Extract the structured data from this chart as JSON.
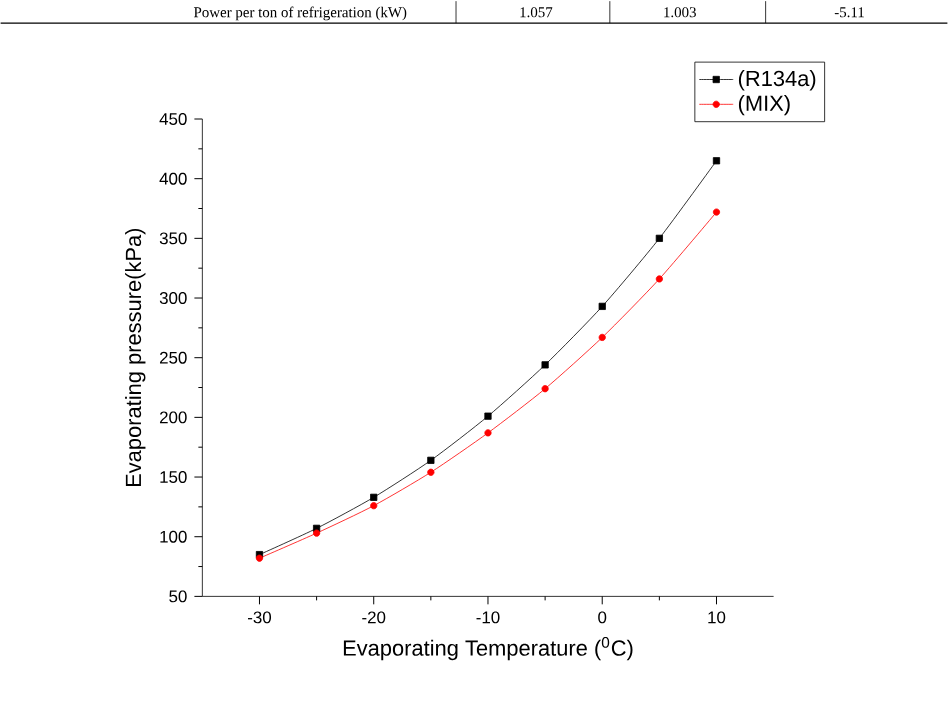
{
  "chart_data": {
    "type": "line",
    "xlabel": "Evaporating Temperature ($^{0}$C)",
    "ylabel": "Evaporating pressure(kPa)",
    "annotations": [
      "Power per ton of refrigeration (kW)",
      "1.057",
      "1.003",
      "-5.11"
    ],
    "x": [
      -30,
      -25,
      -20,
      -15,
      -10,
      -5,
      0,
      5,
      10
    ],
    "series": [
      {
        "name": "(R134a)",
        "color": "#000000",
        "marker": "square",
        "values": [
          85,
          107,
          133,
          164,
          201,
          244,
          293,
          350,
          415
        ]
      },
      {
        "name": "(MIX)",
        "color": "#ff0000",
        "marker": "circle",
        "values": [
          82,
          103,
          126,
          154,
          187,
          224,
          267,
          316,
          372
        ]
      }
    ],
    "xlim": [
      -35,
      15
    ],
    "xticks": [
      -30,
      -20,
      -10,
      0,
      10
    ],
    "ylim": [
      50,
      450
    ],
    "yticks": [
      50,
      100,
      150,
      200,
      250,
      300,
      350,
      400,
      450
    ],
    "legend": "top right",
    "grid": false
  }
}
